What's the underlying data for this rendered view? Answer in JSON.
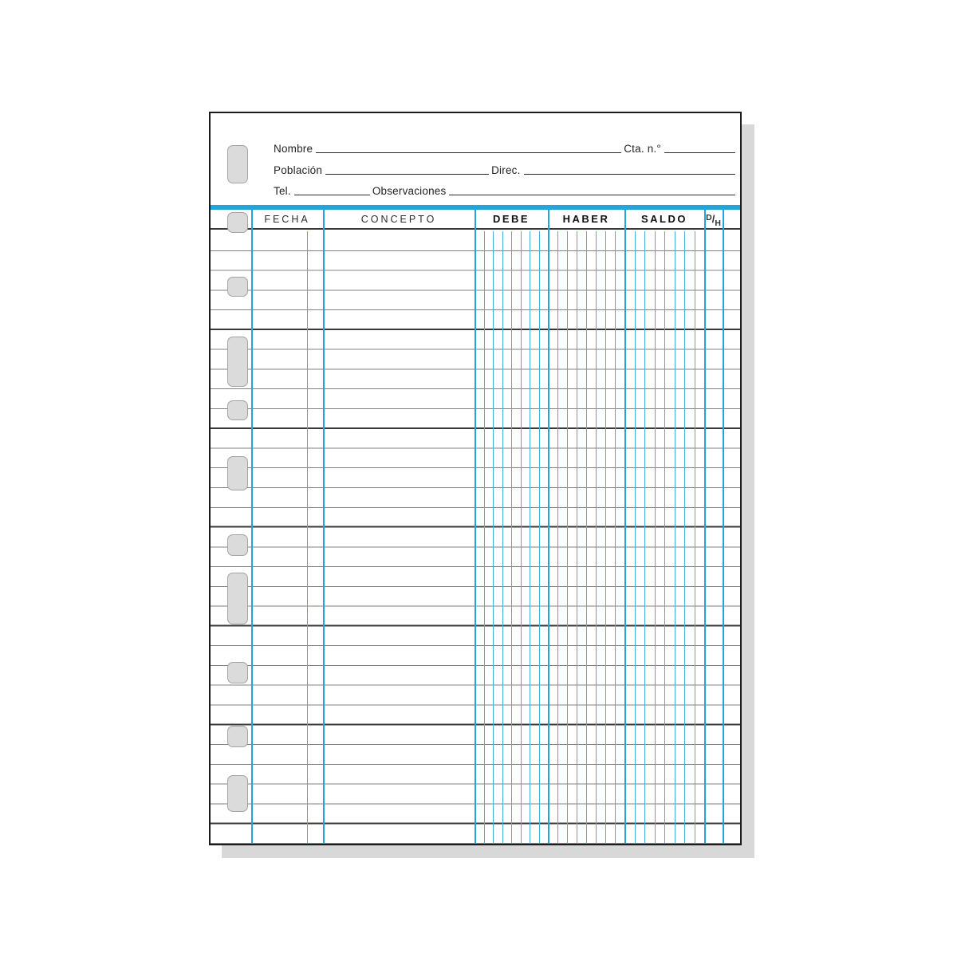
{
  "sheet": {
    "header_fields": {
      "nombre_label": "Nombre",
      "cta_label": "Cta. n.°",
      "poblacion_label": "Población",
      "direc_label": "Direc.",
      "tel_label": "Tel.",
      "observaciones_label": "Observaciones"
    },
    "table": {
      "columns": [
        {
          "key": "fecha",
          "label": "FECHA",
          "bold": false,
          "digit_cells": 0
        },
        {
          "key": "concepto",
          "label": "CONCEPTO",
          "bold": false,
          "digit_cells": 0
        },
        {
          "key": "debe",
          "label": "DEBE",
          "bold": true,
          "digit_cells": 8
        },
        {
          "key": "haber",
          "label": "HABER",
          "bold": true,
          "digit_cells": 8
        },
        {
          "key": "saldo",
          "label": "SALDO",
          "bold": true,
          "digit_cells": 8
        },
        {
          "key": "dh",
          "d_label": "D",
          "slash_label": "/",
          "h_label": "H",
          "bold": true
        }
      ],
      "body_rows": 31,
      "dark_line_every": 5,
      "punch_holes": 11
    },
    "colors": {
      "accent_blue": "#24a5da",
      "thin_blue": "#45b1de",
      "row_line": "#828282",
      "dark_line": "#3a3a3a",
      "hole_fill": "#dbdbdb",
      "shadow": "#d8d8d8"
    }
  }
}
